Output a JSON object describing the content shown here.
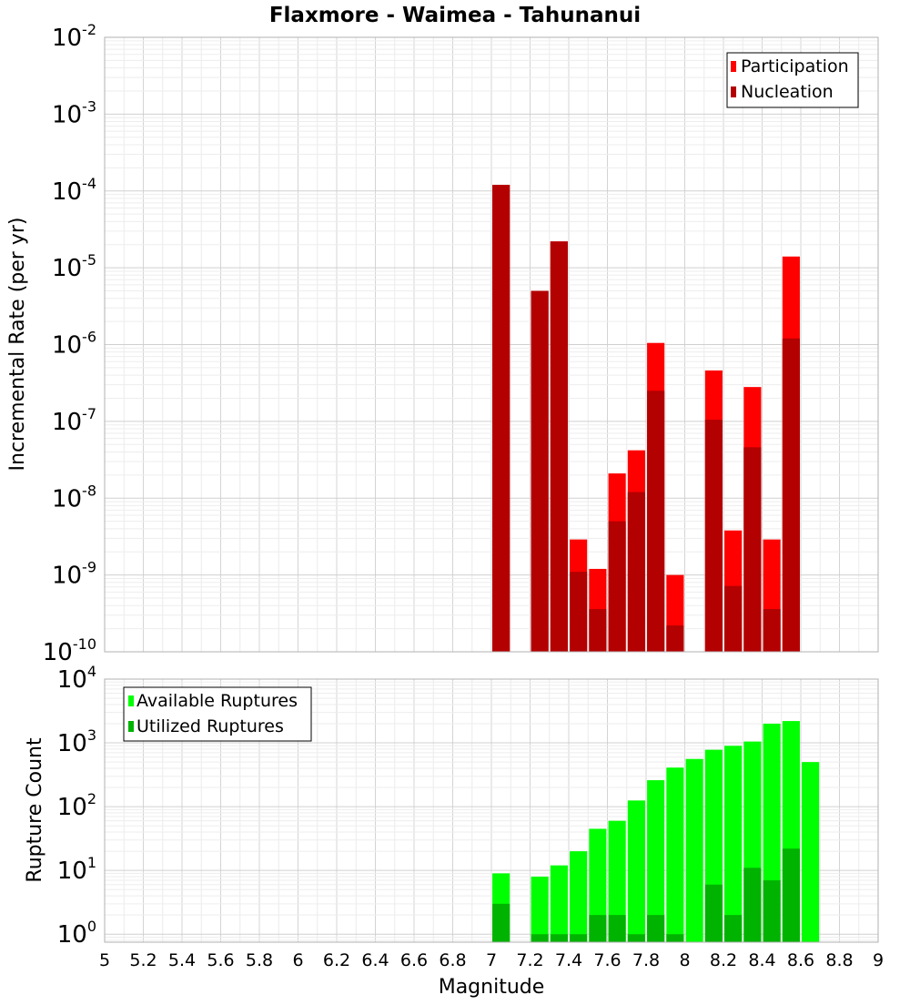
{
  "chart_data": [
    {
      "type": "bar",
      "title": "Flaxmore - Waimea - Tahunanui",
      "xlabel": "",
      "ylabel": "Incremental Rate (per yr)",
      "y_scale": "log",
      "xlim": [
        5,
        9
      ],
      "ylim": [
        1e-10,
        0.01
      ],
      "y_ticks": [
        {
          "base": "10",
          "exp": "-10"
        },
        {
          "base": "10",
          "exp": "-9"
        },
        {
          "base": "10",
          "exp": "-8"
        },
        {
          "base": "10",
          "exp": "-7"
        },
        {
          "base": "10",
          "exp": "-6"
        },
        {
          "base": "10",
          "exp": "-5"
        },
        {
          "base": "10",
          "exp": "-4"
        },
        {
          "base": "10",
          "exp": "-3"
        },
        {
          "base": "10",
          "exp": "-2"
        }
      ],
      "grid": true,
      "legend_position": "top-right",
      "bar_width": 0.09,
      "x": [
        7.05,
        7.25,
        7.35,
        7.45,
        7.55,
        7.65,
        7.75,
        7.85,
        7.95,
        8.15,
        8.25,
        8.35,
        8.45,
        8.55
      ],
      "series": [
        {
          "name": "Participation",
          "color": "#ff0000",
          "values": [
            0.00012,
            5e-06,
            2.2e-05,
            2.9e-09,
            1.2e-09,
            2.1e-08,
            4.2e-08,
            1.05e-06,
            1e-09,
            4.6e-07,
            3.8e-09,
            2.8e-07,
            2.9e-09,
            1.4e-05
          ]
        },
        {
          "name": "Nucleation",
          "color": "#b30000",
          "values": [
            0.00012,
            5e-06,
            2.2e-05,
            1.1e-09,
            3.6e-10,
            5e-09,
            1.2e-08,
            2.5e-07,
            2.2e-10,
            1.05e-07,
            7.2e-10,
            4.6e-08,
            3.6e-10,
            1.2e-06
          ]
        }
      ]
    },
    {
      "type": "bar",
      "title": "",
      "xlabel": "Magnitude",
      "ylabel": "Rupture Count",
      "y_scale": "log",
      "xlim": [
        5,
        9
      ],
      "ylim": [
        0.75,
        10000
      ],
      "y_ticks": [
        {
          "base": "10",
          "exp": "0"
        },
        {
          "base": "10",
          "exp": "1"
        },
        {
          "base": "10",
          "exp": "2"
        },
        {
          "base": "10",
          "exp": "3"
        },
        {
          "base": "10",
          "exp": "4"
        }
      ],
      "x_tick_labels": [
        "5",
        "5.2",
        "5.4",
        "5.6",
        "5.8",
        "6",
        "6.2",
        "6.4",
        "6.6",
        "6.8",
        "7",
        "7.2",
        "7.4",
        "7.6",
        "7.8",
        "8",
        "8.2",
        "8.4",
        "8.6",
        "8.8",
        "9"
      ],
      "grid": true,
      "legend_position": "top-left",
      "bar_width": 0.09,
      "x": [
        7.05,
        7.25,
        7.35,
        7.45,
        7.55,
        7.65,
        7.75,
        7.85,
        7.95,
        8.05,
        8.15,
        8.25,
        8.35,
        8.45,
        8.55,
        8.65
      ],
      "series": [
        {
          "name": "Available Ruptures",
          "color": "#00ff00",
          "values": [
            9,
            8,
            12,
            20,
            45,
            60,
            125,
            260,
            410,
            560,
            780,
            900,
            1050,
            2000,
            2200,
            500
          ]
        },
        {
          "name": "Utilized Ruptures",
          "color": "#00b300",
          "values": [
            3,
            1,
            1,
            1,
            2,
            2,
            1,
            2,
            1,
            null,
            6,
            2,
            11,
            7,
            22,
            null
          ]
        }
      ]
    }
  ]
}
